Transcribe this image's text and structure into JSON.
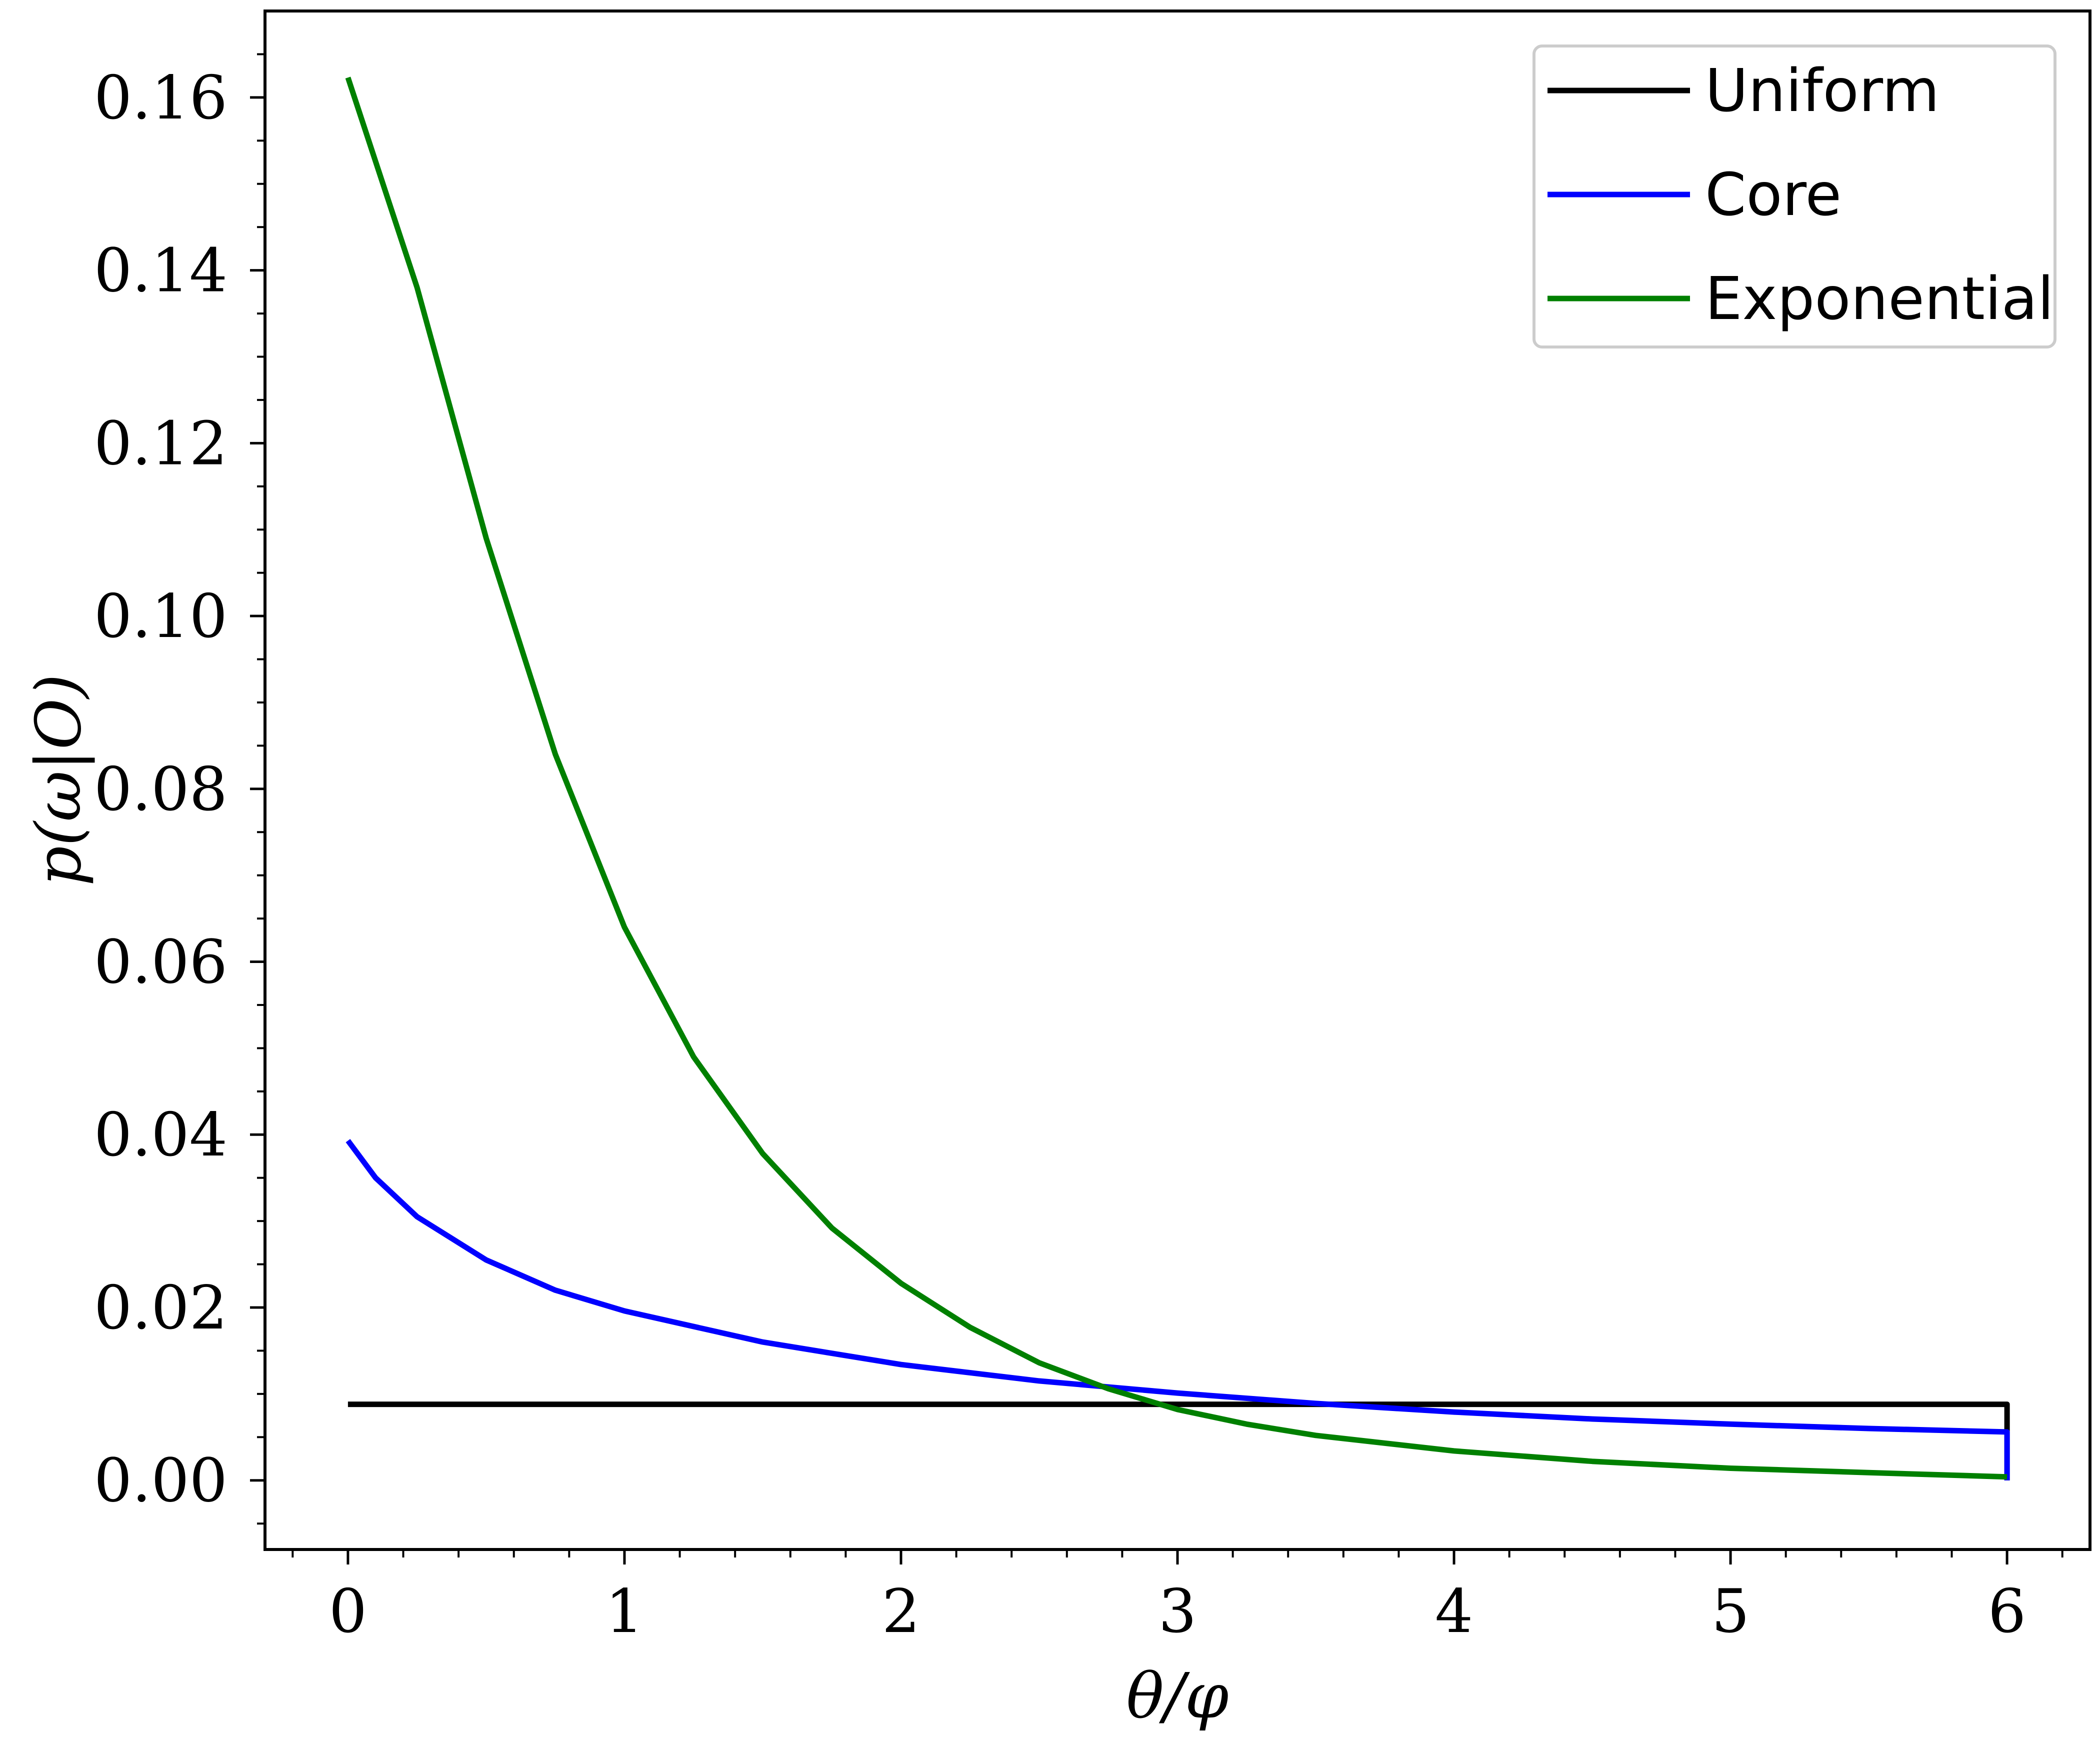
{
  "chart_data": {
    "type": "line",
    "xlabel": "θ/φ",
    "ylabel": "p(ω|O)",
    "xlim": [
      -0.3,
      6.3
    ],
    "ylim": [
      -0.008,
      0.17
    ],
    "x_ticks": [
      0,
      1,
      2,
      3,
      4,
      5,
      6
    ],
    "x_tick_labels": [
      "0",
      "1",
      "2",
      "3",
      "4",
      "5",
      "6"
    ],
    "y_ticks": [
      0.0,
      0.02,
      0.04,
      0.06,
      0.08,
      0.1,
      0.12,
      0.14,
      0.16
    ],
    "y_tick_labels": [
      "0.00",
      "0.02",
      "0.04",
      "0.06",
      "0.08",
      "0.10",
      "0.12",
      "0.14",
      "0.16"
    ],
    "grid": false,
    "legend_position": "top-right",
    "series": [
      {
        "name": "Uniform",
        "color": "#000000",
        "x": [
          0,
          1,
          2,
          3,
          4,
          5,
          6,
          6
        ],
        "y": [
          0.0088,
          0.0088,
          0.0088,
          0.0088,
          0.0088,
          0.0088,
          0.0088,
          0.0
        ]
      },
      {
        "name": "Core",
        "color": "#0000ff",
        "x": [
          0,
          0.1,
          0.25,
          0.5,
          0.75,
          1.0,
          1.5,
          2.0,
          2.5,
          3.0,
          3.5,
          4.0,
          4.5,
          5.0,
          5.5,
          6.0,
          6.0
        ],
        "y": [
          0.0393,
          0.035,
          0.0305,
          0.0255,
          0.022,
          0.0196,
          0.016,
          0.0134,
          0.0115,
          0.0101,
          0.0089,
          0.0079,
          0.0071,
          0.0065,
          0.006,
          0.0056,
          0.0
        ]
      },
      {
        "name": "Exponential",
        "color": "#008000",
        "x": [
          0,
          0.25,
          0.5,
          0.75,
          1.0,
          1.25,
          1.5,
          1.75,
          2.0,
          2.25,
          2.5,
          2.75,
          3.0,
          3.25,
          3.5,
          4.0,
          4.5,
          5.0,
          5.5,
          6.0
        ],
        "y": [
          0.1623,
          0.138,
          0.109,
          0.084,
          0.064,
          0.049,
          0.0378,
          0.0292,
          0.0228,
          0.0177,
          0.0136,
          0.0106,
          0.0082,
          0.0065,
          0.0052,
          0.0034,
          0.0022,
          0.0014,
          0.0009,
          0.0004
        ]
      }
    ]
  }
}
